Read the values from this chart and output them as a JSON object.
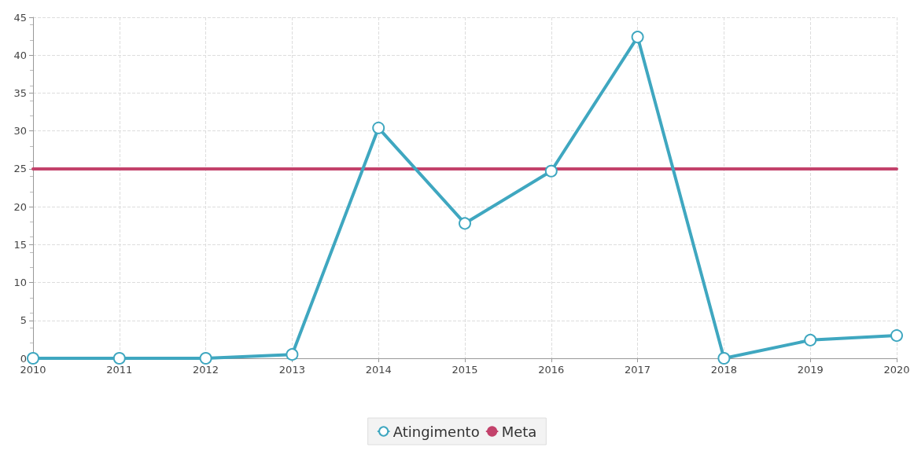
{
  "chart_data": {
    "type": "line",
    "categories": [
      "2010",
      "2011",
      "2012",
      "2013",
      "2014",
      "2015",
      "2016",
      "2017",
      "2018",
      "2019",
      "2020"
    ],
    "series": [
      {
        "name": "Atingimento",
        "color": "#3fa7c0",
        "marker": "circle",
        "values": [
          0,
          0,
          0,
          0.5,
          30.4,
          17.8,
          24.7,
          42.4,
          0,
          2.4,
          3.0
        ]
      },
      {
        "name": "Meta",
        "color": "#c3426b",
        "marker": "none",
        "values": [
          25,
          25,
          25,
          25,
          25,
          25,
          25,
          25,
          25,
          25,
          25
        ]
      }
    ],
    "ylim": [
      0,
      45
    ],
    "yticks": [
      0,
      5,
      10,
      15,
      20,
      25,
      30,
      35,
      40,
      45
    ],
    "grid": true,
    "legend": "bottom",
    "line_style": "solid"
  }
}
